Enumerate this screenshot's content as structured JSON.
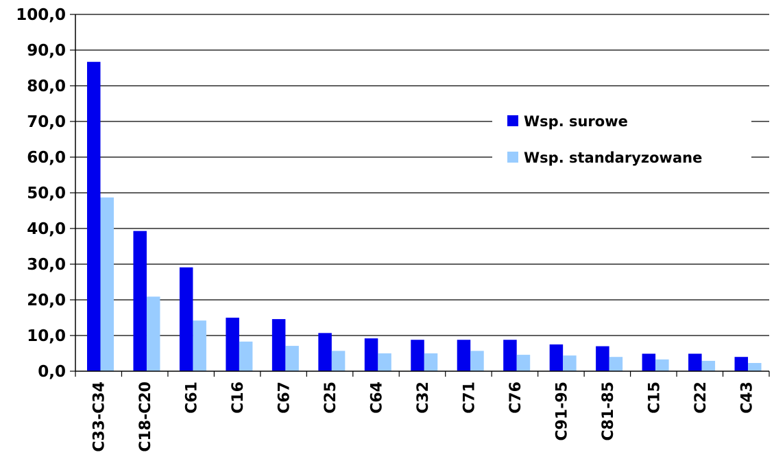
{
  "chart_data": {
    "type": "bar",
    "title": "",
    "xlabel": "",
    "ylabel": "",
    "ylim": [
      0,
      100
    ],
    "y_ticks": [
      "0,0",
      "10,0",
      "20,0",
      "30,0",
      "40,0",
      "50,0",
      "60,0",
      "70,0",
      "80,0",
      "90,0",
      "100,0"
    ],
    "grid": "horizontal",
    "legend_position": "right",
    "categories": [
      "C33-C34",
      "C18-C20",
      "C61",
      "C16",
      "C67",
      "C25",
      "C64",
      "C32",
      "C71",
      "C76",
      "C91-95",
      "C81-85",
      "C15",
      "C22",
      "C43"
    ],
    "series": [
      {
        "name": "Wsp. surowe",
        "color": "#0000ee",
        "values": [
          86.7,
          39.3,
          29.1,
          15.0,
          14.6,
          10.7,
          9.2,
          8.8,
          8.8,
          8.8,
          7.5,
          7.0,
          4.9,
          4.9,
          4.0
        ]
      },
      {
        "name": "Wsp. standaryzowane",
        "color": "#99ccff",
        "values": [
          48.7,
          20.9,
          14.2,
          8.3,
          7.1,
          5.7,
          5.0,
          5.0,
          5.7,
          4.6,
          4.4,
          4.0,
          3.3,
          2.9,
          2.3
        ]
      }
    ]
  }
}
